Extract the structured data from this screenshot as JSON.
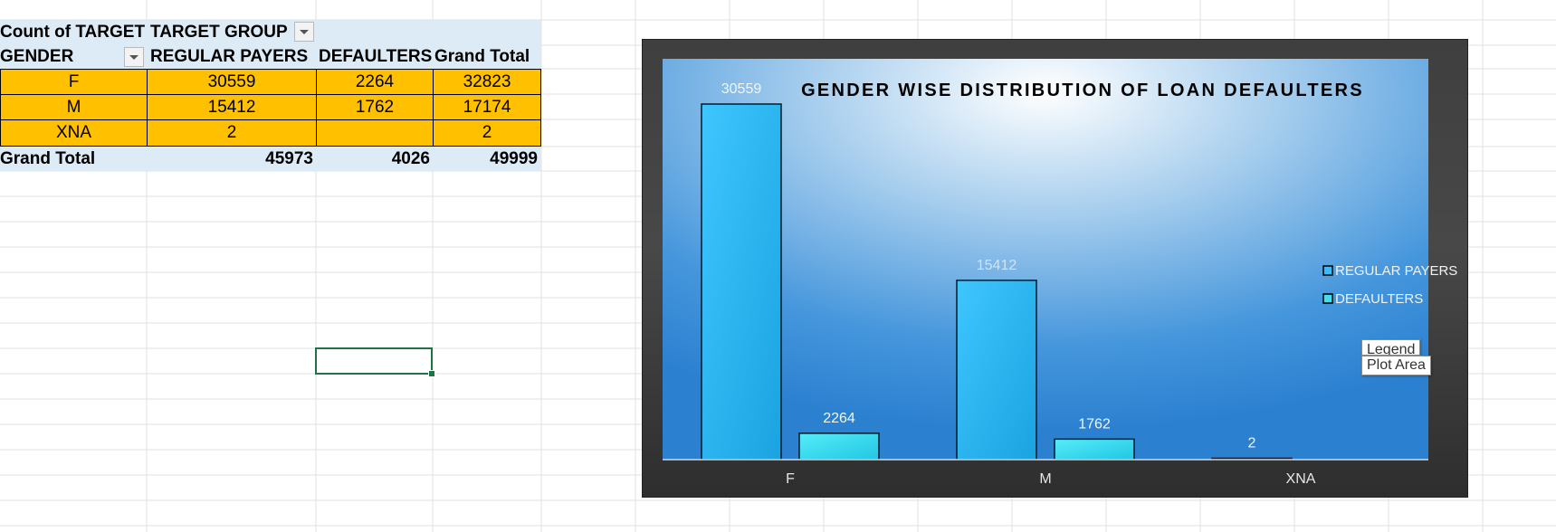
{
  "pivot": {
    "header_row1": {
      "label": "Count of TARGET",
      "column_field": "TARGET GROUP"
    },
    "header_row2": {
      "row_field": "GENDER",
      "col1": "REGULAR PAYERS",
      "col2": "DEFAULTERS",
      "col3": "Grand Total"
    },
    "rows": [
      {
        "label": "F",
        "regular": "30559",
        "defaulters": "2264",
        "total": "32823"
      },
      {
        "label": "M",
        "regular": "15412",
        "defaulters": "1762",
        "total": "17174"
      },
      {
        "label": "XNA",
        "regular": "2",
        "defaulters": "",
        "total": "2"
      }
    ],
    "grand_total": {
      "label": "Grand Total",
      "regular": "45973",
      "defaulters": "4026",
      "total": "49999"
    }
  },
  "chart_data": {
    "type": "bar",
    "title": "GENDER WISE DISTRIBUTION OF LOAN DEFAULTERS",
    "categories": [
      "F",
      "M",
      "XNA"
    ],
    "series": [
      {
        "name": "REGULAR PAYERS",
        "values": [
          30559,
          15412,
          2
        ],
        "color": "#38bdf8"
      },
      {
        "name": "DEFAULTERS",
        "values": [
          2264,
          1762,
          null
        ],
        "color": "#40e0f0"
      }
    ],
    "data_labels": [
      [
        "30559",
        "15412",
        "2"
      ],
      [
        "2264",
        "1762",
        ""
      ]
    ],
    "ylim": [
      0,
      35000
    ],
    "legend_position": "right",
    "grid": false
  },
  "tooltips": {
    "legend": "Legend",
    "plot_area": "Plot Area"
  },
  "colors": {
    "pivot_header": "#ddebf7",
    "pivot_data": "#ffc000",
    "selection": "#217346",
    "chart_frame": "#404040",
    "plot_bg": "#2b86d6"
  }
}
